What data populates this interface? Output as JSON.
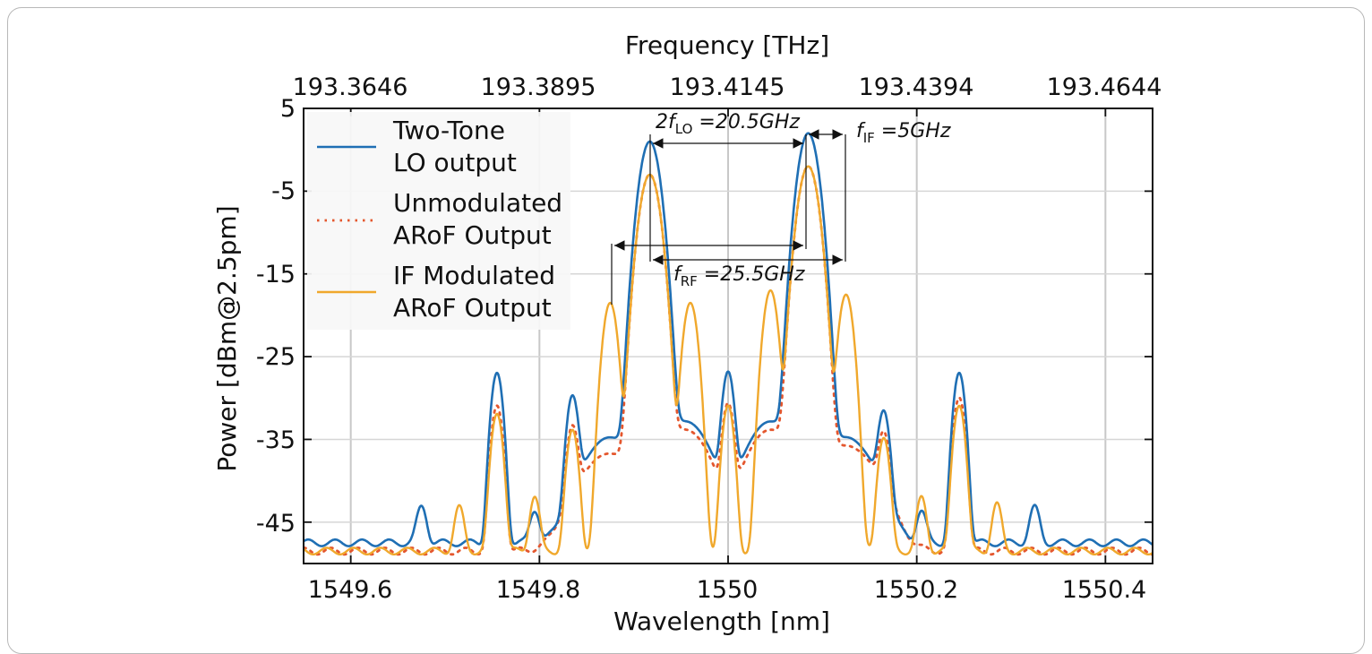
{
  "chart_data": {
    "type": "line",
    "xlabel": "Wavelength [nm]",
    "ylabel": "Power [dBm@2.5pm]",
    "x2label": "Frequency [THz]",
    "xlim": [
      1549.55,
      1550.45
    ],
    "ylim": [
      -50,
      5
    ],
    "x_ticks": [
      "1549.6",
      "1549.8",
      "1550",
      "1550.2",
      "1550.4"
    ],
    "y_ticks": [
      "-45",
      "-35",
      "-25",
      "-15",
      "-5",
      "5"
    ],
    "x2_ticks": [
      "193.3646",
      "193.3895",
      "193.4145",
      "193.4394",
      "193.4644"
    ],
    "grid": true,
    "legend_position": "top-left",
    "legend": [
      {
        "line1": "Two-Tone",
        "line2": "LO output",
        "color": "#1f6fb4",
        "style": "solid"
      },
      {
        "line1": "Unmodulated",
        "line2": "ARoF Output",
        "color": "#e4572e",
        "style": "dotted"
      },
      {
        "line1": "IF Modulated",
        "line2": "ARoF Output",
        "color": "#f0a82c",
        "style": "solid"
      }
    ],
    "annotations": [
      {
        "prefix": "2f",
        "sub": "LO",
        "suffix": " =20.5GHz"
      },
      {
        "prefix": "f",
        "sub": "IF",
        "suffix": " =5GHz"
      },
      {
        "prefix": "f",
        "sub": "RF",
        "suffix": " =25.5GHz"
      }
    ],
    "series": [
      {
        "name": "Two-Tone LO output",
        "color": "#1f6fb4",
        "baseline": -47.5,
        "peaks": [
          {
            "x": 1549.675,
            "y": -45.0,
            "w": 0.0045
          },
          {
            "x": 1549.755,
            "y": -27.0,
            "w": 0.0045
          },
          {
            "x": 1549.795,
            "y": -46.0,
            "w": 0.0045
          },
          {
            "x": 1549.835,
            "y": -30.0,
            "w": 0.0045
          },
          {
            "x": 1549.875,
            "y": -35.0,
            "w": 0.022
          },
          {
            "x": 1549.917,
            "y": 1.0,
            "w": 0.0075
          },
          {
            "x": 1549.955,
            "y": -33.0,
            "w": 0.02
          },
          {
            "x": 1550.0,
            "y": -27.0,
            "w": 0.0045
          },
          {
            "x": 1550.045,
            "y": -33.0,
            "w": 0.02
          },
          {
            "x": 1550.085,
            "y": 2.0,
            "w": 0.0075
          },
          {
            "x": 1550.125,
            "y": -35.0,
            "w": 0.022
          },
          {
            "x": 1550.165,
            "y": -32.0,
            "w": 0.0045
          },
          {
            "x": 1550.205,
            "y": -46.0,
            "w": 0.0045
          },
          {
            "x": 1550.245,
            "y": -27.0,
            "w": 0.0045
          },
          {
            "x": 1550.325,
            "y": -45.0,
            "w": 0.0045
          }
        ]
      },
      {
        "name": "Unmodulated ARoF Output",
        "color": "#e4572e",
        "baseline": -48.5,
        "peaks": [
          {
            "x": 1549.755,
            "y": -31.0,
            "w": 0.0045
          },
          {
            "x": 1549.835,
            "y": -34.0,
            "w": 0.0045
          },
          {
            "x": 1549.875,
            "y": -37.0,
            "w": 0.025
          },
          {
            "x": 1549.917,
            "y": -3.0,
            "w": 0.0075
          },
          {
            "x": 1549.955,
            "y": -34.0,
            "w": 0.02
          },
          {
            "x": 1550.0,
            "y": -31.0,
            "w": 0.0045
          },
          {
            "x": 1550.045,
            "y": -34.0,
            "w": 0.02
          },
          {
            "x": 1550.085,
            "y": -2.0,
            "w": 0.0075
          },
          {
            "x": 1550.125,
            "y": -36.0,
            "w": 0.025
          },
          {
            "x": 1550.165,
            "y": -35.0,
            "w": 0.0045
          },
          {
            "x": 1550.245,
            "y": -30.0,
            "w": 0.0045
          }
        ]
      },
      {
        "name": "IF Modulated ARoF Output",
        "color": "#f0a82c",
        "baseline": -48.5,
        "peaks": [
          {
            "x": 1549.715,
            "y": -44.5,
            "w": 0.0042
          },
          {
            "x": 1549.755,
            "y": -32.0,
            "w": 0.0045
          },
          {
            "x": 1549.795,
            "y": -43.0,
            "w": 0.0042
          },
          {
            "x": 1549.835,
            "y": -34.0,
            "w": 0.0045
          },
          {
            "x": 1549.875,
            "y": -18.5,
            "w": 0.0055
          },
          {
            "x": 1549.917,
            "y": -3.0,
            "w": 0.0075
          },
          {
            "x": 1549.96,
            "y": -18.5,
            "w": 0.0055
          },
          {
            "x": 1550.0,
            "y": -31.0,
            "w": 0.0045
          },
          {
            "x": 1550.045,
            "y": -17.0,
            "w": 0.0055
          },
          {
            "x": 1550.085,
            "y": -2.0,
            "w": 0.0075
          },
          {
            "x": 1550.125,
            "y": -17.5,
            "w": 0.0055
          },
          {
            "x": 1550.165,
            "y": -35.0,
            "w": 0.0045
          },
          {
            "x": 1550.205,
            "y": -43.0,
            "w": 0.0042
          },
          {
            "x": 1550.245,
            "y": -31.0,
            "w": 0.0045
          },
          {
            "x": 1550.285,
            "y": -44.0,
            "w": 0.0042
          }
        ]
      }
    ]
  }
}
